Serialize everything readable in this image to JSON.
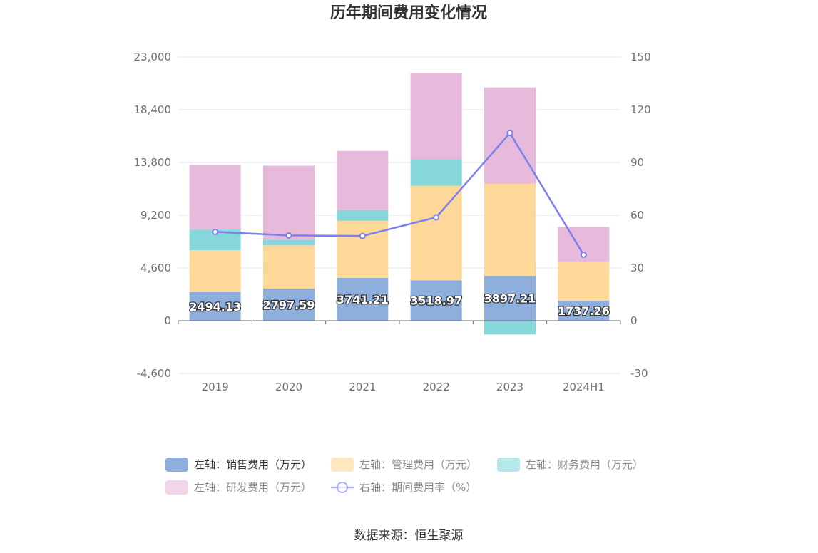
{
  "chart_data": {
    "type": "bar",
    "title": "历年期间费用变化情况",
    "categories": [
      "2019",
      "2020",
      "2021",
      "2022",
      "2023",
      "2024H1"
    ],
    "y_left": {
      "min": -4600,
      "max": 23000,
      "ticks": [
        -4600,
        0,
        4600,
        9200,
        13800,
        18400,
        23000
      ],
      "tick_labels": [
        "-4,600",
        "0",
        "4,600",
        "9,200",
        "13,800",
        "18,400",
        "23,000"
      ]
    },
    "y_right": {
      "min": -30,
      "max": 150,
      "ticks": [
        -30,
        0,
        30,
        60,
        90,
        120,
        150
      ],
      "tick_labels": [
        "-30",
        "0",
        "30",
        "60",
        "90",
        "120",
        "150"
      ]
    },
    "series": [
      {
        "name": "左轴：销售费用（万元）",
        "kind": "bar",
        "color": "#8eaedc",
        "values": [
          2494.13,
          2797.59,
          3741.21,
          3518.97,
          3897.21,
          1737.26
        ],
        "labels": [
          "2494.13",
          "2797.59",
          "3741.21",
          "3518.97",
          "3897.21",
          "1737.26"
        ]
      },
      {
        "name": "左轴：管理费用（万元）",
        "kind": "bar",
        "color": "#fed898",
        "values": [
          3650,
          3770,
          4970,
          8260,
          8050,
          3390
        ]
      },
      {
        "name": "左轴：财务费用（万元）",
        "kind": "bar",
        "color": "#85d7da",
        "values": [
          1800,
          500,
          950,
          2300,
          -1200,
          0
        ]
      },
      {
        "name": "左轴：研发费用（万元）",
        "kind": "bar",
        "color": "#e7b9da",
        "values": [
          5650,
          6450,
          5150,
          7550,
          8400,
          3050
        ]
      },
      {
        "name": "右轴：期间费用率（%）",
        "kind": "line",
        "axis": "right",
        "color": "#7b7ff0",
        "values": [
          50.5,
          48.5,
          48.2,
          58.8,
          106.8,
          37.5
        ]
      }
    ],
    "legend_position": "bottom",
    "grid": true
  },
  "source": "数据来源：恒生聚源"
}
